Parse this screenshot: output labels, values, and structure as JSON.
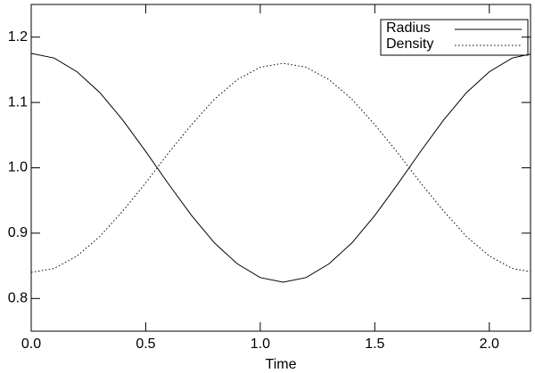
{
  "chart_data": {
    "type": "line",
    "x_label": "Time",
    "x": [
      0,
      0.1,
      0.2,
      0.3,
      0.4,
      0.5,
      0.6,
      0.7,
      0.8,
      0.9,
      1.0,
      1.1,
      1.2,
      1.3,
      1.4,
      1.5,
      1.6,
      1.7,
      1.8,
      1.9,
      2.0,
      2.1,
      2.18
    ],
    "series": [
      {
        "name": "Radius",
        "color": "#000000",
        "dash": "solid",
        "values": [
          1.175,
          1.168,
          1.147,
          1.115,
          1.073,
          1.025,
          0.975,
          0.927,
          0.885,
          0.853,
          0.832,
          0.825,
          0.832,
          0.853,
          0.885,
          0.927,
          0.975,
          1.025,
          1.073,
          1.115,
          1.147,
          1.168,
          1.174
        ]
      },
      {
        "name": "Density",
        "color": "#000000",
        "dash": "dotted",
        "values": [
          0.84,
          0.846,
          0.865,
          0.895,
          0.934,
          0.977,
          1.023,
          1.066,
          1.105,
          1.135,
          1.154,
          1.16,
          1.154,
          1.135,
          1.105,
          1.066,
          1.023,
          0.977,
          0.934,
          0.895,
          0.865,
          0.846,
          0.841
        ]
      }
    ],
    "xlim": [
      0,
      2.18
    ],
    "xticks": [
      {
        "value": 0,
        "label": "0.0"
      },
      0.5,
      {
        "value": 1,
        "label": "1.0"
      },
      1.5,
      {
        "value": 2,
        "label": "2.0"
      }
    ],
    "ylim": [
      0.75,
      1.25
    ],
    "yticks": [
      0.8,
      0.9,
      {
        "value": 1,
        "label": "1.0"
      },
      1.1,
      1.2
    ],
    "legend": "top-right"
  }
}
